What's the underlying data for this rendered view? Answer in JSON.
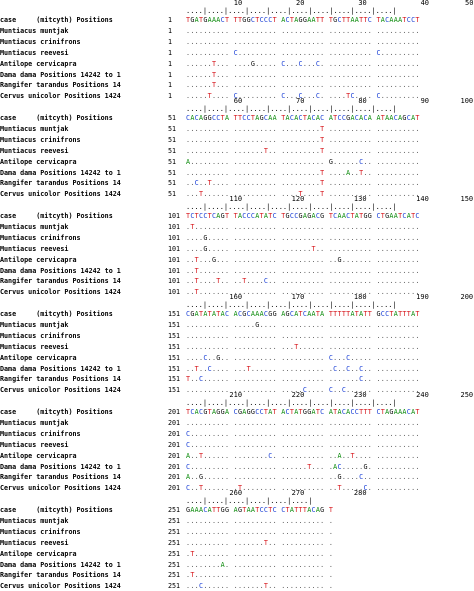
{
  "title": "",
  "species": [
    "case     (mitcyth) Positions",
    "Muntiacus muntjak",
    "Muntiacus crinifrons",
    "Muntiacus reevesi",
    "Antilope cervicapra",
    "Dama dama Positions 14242 to 1",
    "Rangifer tarandus Positions 14",
    "Cervus unicolor Positions 1424"
  ],
  "blocks": [
    {
      "ticks": [
        "10",
        "20",
        "30",
        "40",
        "50"
      ],
      "ruler": "....|....|....|....|....|....|....|....|....|....|",
      "start": [
        "1",
        "1",
        "1",
        "1",
        "1",
        "1",
        "1",
        "1"
      ],
      "rows": [
        "TGATGAAACT TTGGCTCCCT ACTAGGAATT TGCTTAATTC TACAAATCCT",
        ".......... .......... .......... .......... ..........",
        ".......... .......... .......... .......... ..........",
        ".......... C......... .......... .......... C.........",
        "......T... ....G..... C...C...C. .......... ..........",
        "......T... .......... .......... .......... ..........",
        "......T... .......... .......... .......... ..........",
        ".....T.... C......... C...C...C. ....TC.... C........."
      ]
    },
    {
      "ticks": [
        "60",
        "70",
        "80",
        "90",
        "100"
      ],
      "ruler": "....|....|....|....|....|....|....|....|....|....|",
      "start": [
        "51",
        "51",
        "51",
        "51",
        "51",
        "51",
        "51",
        "51"
      ],
      "rows": [
        "CACAGGCCTA TTCCTAGCAA TACACTACAC ATCCGACACA ATAACAGCAT",
        ".......... .......... .........T .......... ..........",
        ".......... .......... .........T .......... ..........",
        ".......... .......T.. .........T .......... ..........",
        "A......... .......... .......... G......C.. ..........",
        ".......... .......... .........T ....A..T.. ..........",
        "..C..T.... .......... .........T .......... ..........",
        "...T...... .......... ....T....T .......... .........."
      ]
    },
    {
      "ticks": [
        "110",
        "120",
        "130",
        "140",
        "150"
      ],
      "ruler": "....|....|....|....|....|....|....|....|....|....|",
      "start": [
        "101",
        "101",
        "101",
        "101",
        "101",
        "101",
        "101",
        "101"
      ],
      "rows": [
        "TCTCCTCAGT TACCCATATC TGCCGAGACG TCAACTATGG CTGAATCATC",
        ".T........ .......... .......... .......... ..........",
        "....G..... .......... .......... .......... ..........",
        "....G..... .......... .......T.. .......... ..........",
        "..T...G... .......... .......... ..G....... ..........",
        "..T....... .......... .......... .......... ..........",
        "..T....T.. ..T....C.. .......... .......... ..........",
        "..T....... .......... .......... .......... .........."
      ]
    },
    {
      "ticks": [
        "160",
        "170",
        "180",
        "190",
        "200"
      ],
      "ruler": "....|....|....|....|....|....|....|....|....|....|",
      "start": [
        "151",
        "151",
        "151",
        "151",
        "151",
        "151",
        "151",
        "151"
      ],
      "rows": [
        "CGATATATAC ACGCAAACGG AGCATCAATA TTTTTATATT GCCTATTTAT",
        ".......... .....G.... .......... .......... ..........",
        ".......... .......... .......... .......... ..........",
        ".......... .......... ...T...... .......... ..........",
        "....C..G.. .......... .......... C...C..... ..........",
        "..T..C.... ...T...... .......... .C..C..C.. ..........",
        "T..C...... .......... .......... .......C.. ..........",
        ".......... .......... .....C.... C..C...... .........."
      ]
    },
    {
      "ticks": [
        "210",
        "220",
        "230",
        "240",
        "250"
      ],
      "ruler": "....|....|....|....|....|....|....|....|....|....|",
      "start": [
        "201",
        "201",
        "201",
        "201",
        "201",
        "201",
        "201",
        "201"
      ],
      "rows": [
        "TCACGTAGGA CGAGGCCTAT ACTATGGATC ATACACCTTT CTAGAAACAT",
        ".......... .......... .......... .......... ..........",
        "C......... .......... .......... .......... ..........",
        "C......... .......... .......... .......... ..........",
        "A..T...... ........C. .......... ..A..T.... ..........",
        "C......... .......... ......T... .AC.....G. ..........",
        "A..G...... .......... .......... ..G....C.. ..........",
        "C..T...... .T........ .......... ..T.....C. .........."
      ]
    },
    {
      "ticks": [
        "260",
        "270",
        "280"
      ],
      "ruler": "....|....|....|....|....|....|",
      "start": [
        "251",
        "251",
        "251",
        "251",
        "251",
        "251",
        "251",
        "251"
      ],
      "rows": [
        "GAAACATTGG AGTAATCCTC CTATTTACAG T",
        ".......... .......... .......... .",
        ".......... .......... .......... .",
        ".......... .......T.. .......... .",
        ".T........ .......... .......... .",
        "........A. .......... .......... .",
        ".T........ .......... .......... .",
        "...C...... .......T.. .......... ."
      ]
    }
  ]
}
